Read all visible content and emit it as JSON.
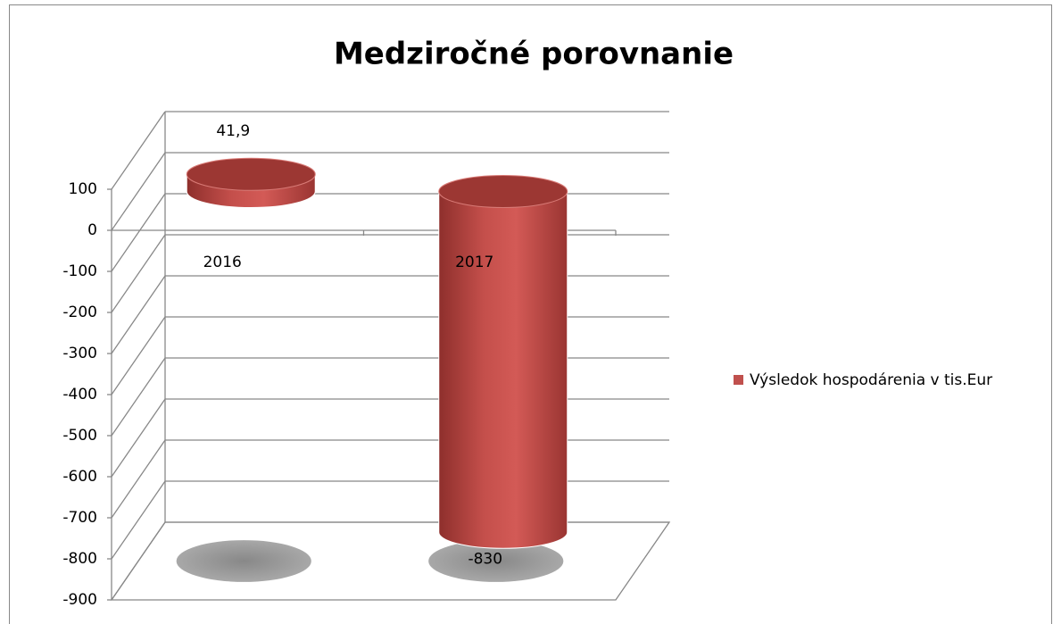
{
  "chart_data": {
    "type": "cylinder3d",
    "title": "Medziročné porovnanie",
    "categories": [
      "2016",
      "2017"
    ],
    "series": [
      {
        "name": "Výsledok hospodárenia v tis.Eur",
        "color": "#c0504d",
        "values": [
          41.9,
          -830
        ],
        "value_labels": [
          "41,9",
          "-830"
        ]
      }
    ],
    "ylim": [
      -900,
      100
    ],
    "yticks": [
      -900,
      -800,
      -700,
      -600,
      -500,
      -400,
      -300,
      -200,
      -100,
      0,
      100
    ],
    "grid": true,
    "legend": "right"
  }
}
